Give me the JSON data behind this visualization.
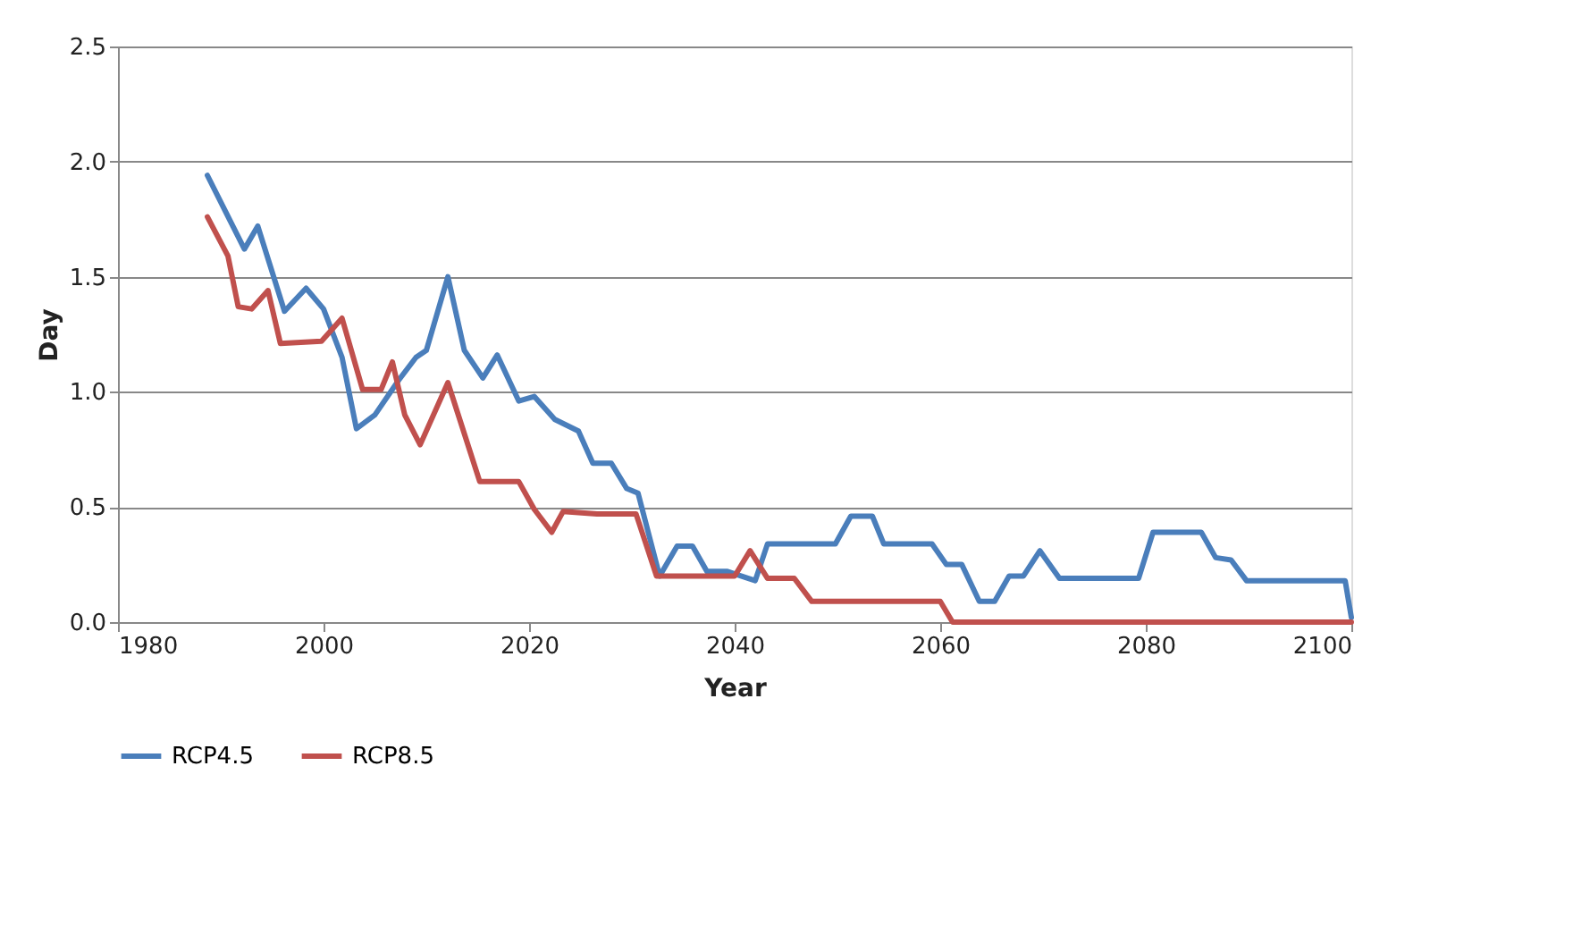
{
  "chart_data": {
    "type": "line",
    "xlabel": "Year",
    "ylabel": "Day",
    "xlim": [
      1980,
      2100
    ],
    "xticks": [
      1980,
      2000,
      2020,
      2040,
      2060,
      2080,
      2100
    ],
    "ylim": [
      0,
      2.5
    ],
    "yticks": [
      {
        "value": 0,
        "label": "0.0"
      },
      {
        "value": 0.5,
        "label": "0.5"
      },
      {
        "value": 1,
        "label": "1.0"
      },
      {
        "value": 1.5,
        "label": "1.5"
      },
      {
        "value": 2,
        "label": "2.0"
      },
      {
        "value": 2.5,
        "label": "2.5"
      }
    ],
    "grid": "y",
    "legend": "bottom",
    "marker": "none",
    "line_style": "solid",
    "series": [
      {
        "name": "RCP4.5",
        "color": "#4a7ebb",
        "x": [
          1988.7,
          1992.3,
          1993.6,
          1996.2,
          1998.3,
          2000,
          2001.8,
          2003.2,
          2005,
          2007.3,
          2009,
          2010,
          2012.1,
          2013.7,
          2015.5,
          2016.9,
          2019,
          2020.5,
          2022.5,
          2024.8,
          2026.2,
          2028,
          2029.5,
          2030.6,
          2032.7,
          2034.4,
          2035.9,
          2037.3,
          2039.3,
          2042,
          2043.2,
          2049.8,
          2051.3,
          2053.4,
          2054.5,
          2059.2,
          2060.6,
          2062.1,
          2063.8,
          2065.3,
          2066.7,
          2068.1,
          2069.7,
          2071.6,
          2079.3,
          2080.7,
          2085.4,
          2086.8,
          2088.3,
          2089.8,
          2099.4,
          2100
        ],
        "values": [
          1.94,
          1.62,
          1.72,
          1.35,
          1.45,
          1.36,
          1.15,
          0.84,
          0.9,
          1.05,
          1.15,
          1.18,
          1.5,
          1.18,
          1.06,
          1.16,
          0.96,
          0.98,
          0.88,
          0.83,
          0.69,
          0.69,
          0.58,
          0.56,
          0.2,
          0.33,
          0.33,
          0.22,
          0.22,
          0.18,
          0.34,
          0.34,
          0.46,
          0.46,
          0.34,
          0.34,
          0.25,
          0.25,
          0.09,
          0.09,
          0.2,
          0.2,
          0.31,
          0.19,
          0.19,
          0.39,
          0.39,
          0.28,
          0.27,
          0.18,
          0.18,
          0.02
        ]
      },
      {
        "name": "RCP8.5",
        "color": "#c0504d",
        "x": [
          1988.7,
          1990.7,
          1991.7,
          1993,
          1994.6,
          1995.8,
          1999.8,
          2001.8,
          2003.8,
          2005.6,
          2006.7,
          2007.9,
          2009.4,
          2012.1,
          2015.2,
          2019,
          2020.5,
          2022.2,
          2023.3,
          2026.6,
          2030.4,
          2032.4,
          2040,
          2041.5,
          2043.2,
          2045.8,
          2047.5,
          2060,
          2061.2,
          2100
        ],
        "values": [
          1.76,
          1.59,
          1.37,
          1.36,
          1.44,
          1.21,
          1.22,
          1.32,
          1.01,
          1.01,
          1.13,
          0.9,
          0.77,
          1.04,
          0.61,
          0.61,
          0.49,
          0.39,
          0.48,
          0.47,
          0.47,
          0.2,
          0.2,
          0.31,
          0.19,
          0.19,
          0.09,
          0.09,
          0,
          0
        ]
      }
    ]
  }
}
